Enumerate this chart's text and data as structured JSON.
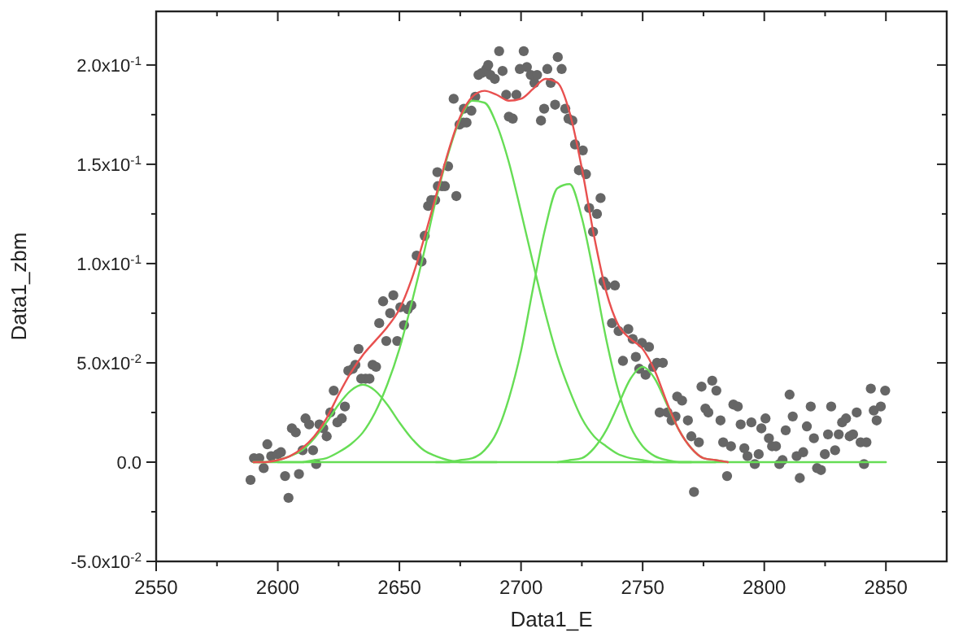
{
  "chart_data": {
    "type": "scatter",
    "xlabel": "Data1_E",
    "ylabel": "Data1_zbm",
    "xlim": [
      2550,
      2875
    ],
    "ylim": [
      -0.05,
      0.227
    ],
    "xticks": [
      2550,
      {
        "value": 2575,
        "label": null
      },
      2600,
      {
        "value": 2625,
        "label": null
      },
      2650,
      {
        "value": 2675,
        "label": null
      },
      2700,
      {
        "value": 2725,
        "label": null
      },
      2750,
      {
        "value": 2775,
        "label": null
      },
      2800,
      {
        "value": 2825,
        "label": null
      },
      2850
    ],
    "yticks": [
      {
        "value": -0.05,
        "label": "-5.0x10$^{-2}$"
      },
      {
        "value": -0.025,
        "label": null
      },
      {
        "value": 0,
        "label": "0.0"
      },
      {
        "value": 0.025,
        "label": null
      },
      {
        "value": 0.05,
        "label": "5.0x10$^{-2}$"
      },
      {
        "value": 0.075,
        "label": null
      },
      {
        "value": 0.1,
        "label": "1.0x10$^{-1}$"
      },
      {
        "value": 0.125,
        "label": null
      },
      {
        "value": 0.15,
        "label": "1.5x10$^{-1}$"
      },
      {
        "value": 0.175,
        "label": null
      },
      {
        "value": 0.2,
        "label": "2.0x10$^{-1}$"
      }
    ],
    "grid": false,
    "series": [
      {
        "marker": "circle",
        "color": "#666666",
        "x": [
          2588.8,
          2590.2,
          2592.4,
          2594.2,
          2595.7,
          2597.3,
          2600,
          2601.3,
          2603,
          2604.4,
          2605.8,
          2607.4,
          2608.7,
          2610.2,
          2611.4,
          2612.9,
          2614.5,
          2615.8,
          2617.1,
          2618.7,
          2620.1,
          2621.6,
          2623,
          2624.5,
          2626.3,
          2627.6,
          2629,
          2630.8,
          2631.9,
          2633.2,
          2634.3,
          2636.1,
          2637.7,
          2639,
          2640.4,
          2641.7,
          2643.3,
          2644.6,
          2646.2,
          2647.5,
          2649.1,
          2650.4,
          2651.9,
          2653.5,
          2654.9,
          2657.1,
          2659.1,
          2660.4,
          2661.8,
          2663.1,
          2664.7,
          2665.6,
          2665.8,
          2667.5,
          2668.7,
          2670,
          2672.3,
          2673.4,
          2674.7,
          2676.3,
          2676.5,
          2677.6,
          2679.6,
          2681.2,
          2682.5,
          2683.9,
          2685.7,
          2686.5,
          2687.4,
          2689.2,
          2691,
          2692.4,
          2693.9,
          2695,
          2696.6,
          2698.1,
          2699.5,
          2701.1,
          2702.4,
          2704,
          2705.5,
          2706.6,
          2708.2,
          2709.5,
          2710.8,
          2712.2,
          2714,
          2715.1,
          2716.7,
          2718.2,
          2719.5,
          2721.1,
          2722.2,
          2723.8,
          2725.4,
          2726.7,
          2728,
          2729.6,
          2731.2,
          2732.7,
          2733.9,
          2735,
          2737.4,
          2738.6,
          2740.1,
          2741.9,
          2744.1,
          2745.9,
          2747.2,
          2748.6,
          2749.7,
          2751.2,
          2752.6,
          2754.3,
          2755.9,
          2757,
          2758.3,
          2760.2,
          2761.9,
          2763.5,
          2764.2,
          2766.2,
          2768.6,
          2770,
          2771.1,
          2773.1,
          2774.2,
          2775.8,
          2777,
          2778.6,
          2780.3,
          2782,
          2783.1,
          2784.7,
          2786.3,
          2787.3,
          2789.1,
          2790.3,
          2791.8,
          2793.1,
          2794.7,
          2796.1,
          2797.7,
          2798.8,
          2800.5,
          2801.9,
          2803.2,
          2804.8,
          2806.2,
          2807.5,
          2808.8,
          2810.4,
          2811.7,
          2813.3,
          2814.6,
          2816,
          2817.5,
          2819.1,
          2820.4,
          2821.7,
          2823.3,
          2824.9,
          2826.2,
          2827.5,
          2829.1,
          2830.6,
          2832,
          2833.6,
          2835.1,
          2836.5,
          2838,
          2839.6,
          2841,
          2842,
          2843.8,
          2845,
          2846.2,
          2847.9,
          2849.7
        ],
        "values": [
          -0.009,
          0.002,
          0.002,
          -0.003,
          0.009,
          0.003,
          0.004,
          0.005,
          -0.007,
          -0.018,
          0.017,
          0.015,
          -0.006,
          0.006,
          0.022,
          0.019,
          0.006,
          -0.001,
          0.019,
          0.017,
          0.013,
          0.025,
          0.036,
          0.02,
          0.022,
          0.028,
          0.046,
          0.047,
          0.049,
          0.057,
          0.042,
          0.042,
          0.042,
          0.049,
          0.048,
          0.07,
          0.081,
          0.061,
          0.075,
          0.084,
          0.061,
          0.078,
          0.069,
          0.077,
          0.079,
          0.104,
          0.101,
          0.114,
          0.129,
          0.132,
          0.132,
          0.146,
          0.139,
          0.139,
          0.139,
          0.149,
          0.183,
          0.134,
          0.17,
          0.171,
          0.178,
          0.171,
          0.177,
          0.184,
          0.195,
          0.196,
          0.198,
          0.2,
          0.195,
          0.193,
          0.207,
          0.197,
          0.185,
          0.174,
          0.173,
          0.185,
          0.198,
          0.207,
          0.199,
          0.195,
          0.191,
          0.195,
          0.172,
          0.178,
          0.198,
          0.191,
          0.18,
          0.204,
          0.198,
          0.178,
          0.173,
          0.172,
          0.16,
          0.147,
          0.157,
          0.145,
          0.128,
          0.116,
          0.125,
          0.133,
          0.091,
          0.089,
          0.07,
          0.089,
          0.066,
          0.051,
          0.067,
          0.062,
          0.053,
          0.047,
          0.06,
          0.044,
          0.058,
          0.048,
          0.05,
          0.025,
          0.05,
          0.025,
          0.021,
          0.023,
          0.033,
          0.031,
          0.021,
          0.013,
          -0.015,
          0.01,
          0.038,
          0.027,
          0.025,
          0.041,
          0.036,
          0.021,
          0.01,
          -0.007,
          0.008,
          0.029,
          0.028,
          0.019,
          0.007,
          0.003,
          0.02,
          -0.001,
          0.004,
          0.017,
          0.022,
          0.012,
          0.008,
          0.008,
          -0.001,
          0.001,
          0.016,
          0.034,
          0.023,
          0.003,
          -0.008,
          0.005,
          0.018,
          0.028,
          0.012,
          -0.003,
          -0.004,
          0.004,
          0.014,
          0.028,
          0.006,
          0.014,
          0.02,
          0.022,
          0.013,
          0.014,
          0.025,
          0.01,
          -0.001,
          0.01,
          0.037,
          0.026,
          0.021,
          0.028,
          0.036
        ]
      },
      {
        "type": "line",
        "color": "#66dd55",
        "x": [
          2590,
          2850
        ],
        "values": [
          0,
          0
        ]
      },
      {
        "type": "line",
        "color": "#66dd55",
        "x": [
          2590,
          2595,
          2600,
          2605,
          2610,
          2615,
          2620,
          2625,
          2630,
          2635,
          2640,
          2645,
          2650,
          2655,
          2660,
          2665,
          2670,
          2675,
          2680,
          2685,
          2690
        ],
        "values": [
          0,
          0,
          0.001,
          0.003,
          0.006,
          0.012,
          0.02,
          0.029,
          0.036,
          0.039,
          0.036,
          0.029,
          0.02,
          0.012,
          0.006,
          0.003,
          0.001,
          0,
          0,
          0,
          0
        ]
      },
      {
        "type": "line",
        "color": "#66dd55",
        "x": [
          2600,
          2605,
          2610,
          2615,
          2620,
          2625,
          2630,
          2635,
          2640,
          2645,
          2650,
          2655,
          2660,
          2665,
          2670,
          2675,
          2680,
          2685,
          2690,
          2695,
          2700,
          2705,
          2710,
          2715,
          2720,
          2725,
          2730,
          2735,
          2740,
          2745,
          2750,
          2755,
          2760,
          2765,
          2770,
          2775,
          2780
        ],
        "values": [
          0,
          0,
          0,
          0.001,
          0.002,
          0.005,
          0.009,
          0.015,
          0.025,
          0.039,
          0.057,
          0.08,
          0.105,
          0.132,
          0.155,
          0.173,
          0.182,
          0.181,
          0.17,
          0.151,
          0.126,
          0.1,
          0.075,
          0.053,
          0.036,
          0.022,
          0.013,
          0.008,
          0.004,
          0.002,
          0.001,
          0,
          0,
          0,
          0,
          0,
          0
        ]
      },
      {
        "type": "line",
        "color": "#66dd55",
        "x": [
          2665,
          2670,
          2675,
          2680,
          2685,
          2690,
          2695,
          2700,
          2705,
          2710,
          2715,
          2720,
          2725,
          2730,
          2735,
          2740,
          2745,
          2750,
          2755,
          2760,
          2765,
          2770
        ],
        "values": [
          0,
          0,
          0.001,
          0.002,
          0.006,
          0.015,
          0.032,
          0.056,
          0.088,
          0.118,
          0.138,
          0.14,
          0.123,
          0.094,
          0.062,
          0.036,
          0.018,
          0.008,
          0.003,
          0.001,
          0,
          0
        ]
      },
      {
        "type": "line",
        "color": "#66dd55",
        "x": [
          2715,
          2720,
          2725,
          2730,
          2735,
          2740,
          2745,
          2750,
          2755,
          2760,
          2765,
          2770,
          2775,
          2780,
          2785
        ],
        "values": [
          0,
          0.001,
          0.002,
          0.007,
          0.016,
          0.029,
          0.042,
          0.048,
          0.042,
          0.029,
          0.016,
          0.007,
          0.002,
          0.001,
          0
        ]
      },
      {
        "type": "line",
        "color": "#e8504f",
        "x": [
          2590,
          2595,
          2600,
          2605,
          2610,
          2615,
          2620,
          2625,
          2630,
          2635,
          2640,
          2645,
          2650,
          2655,
          2660,
          2665,
          2670,
          2675,
          2680,
          2685,
          2690,
          2695,
          2700,
          2705,
          2710,
          2715,
          2720,
          2725,
          2730,
          2735,
          2740,
          2745,
          2750,
          2755,
          2760,
          2765,
          2770,
          2775,
          2780,
          2785
        ],
        "values": [
          0,
          0,
          0.001,
          0.003,
          0.007,
          0.013,
          0.022,
          0.034,
          0.045,
          0.054,
          0.061,
          0.068,
          0.077,
          0.092,
          0.112,
          0.134,
          0.156,
          0.174,
          0.184,
          0.187,
          0.185,
          0.182,
          0.183,
          0.188,
          0.193,
          0.191,
          0.176,
          0.148,
          0.114,
          0.086,
          0.069,
          0.062,
          0.057,
          0.046,
          0.03,
          0.016,
          0.007,
          0.002,
          0.001,
          0
        ]
      }
    ]
  }
}
